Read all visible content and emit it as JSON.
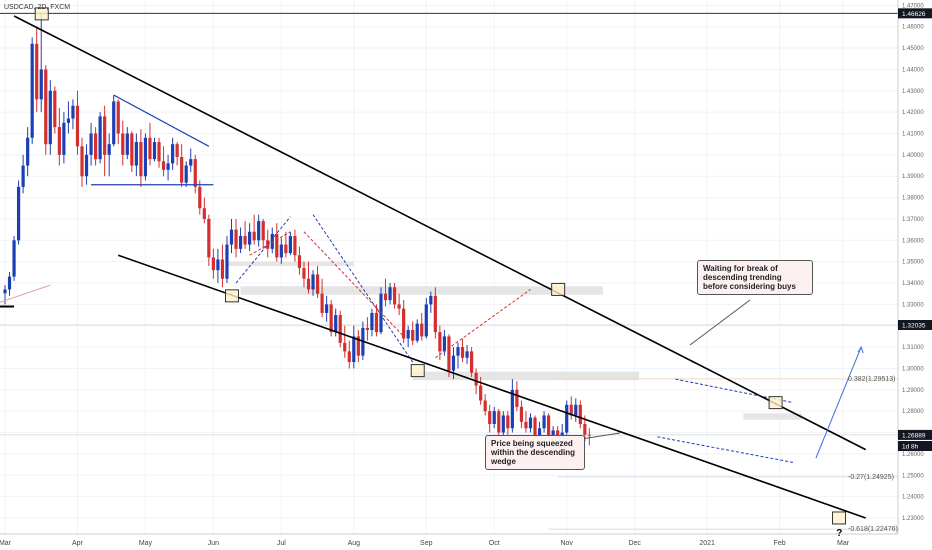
{
  "symbol_label": "USDCAD, 2D, FXCM",
  "chart_data": {
    "type": "candlestick",
    "title": "USDCAD, 2D, FXCM",
    "ylim": [
      1.2225,
      1.4725
    ],
    "y_ticks": [
      "1.47000",
      "1.46000",
      "1.45000",
      "1.44000",
      "1.43000",
      "1.42000",
      "1.41000",
      "1.40000",
      "1.39000",
      "1.38000",
      "1.37000",
      "1.36000",
      "1.35000",
      "1.34000",
      "1.33000",
      "1.32000",
      "1.31000",
      "1.30000",
      "1.29000",
      "1.28000",
      "1.27000",
      "1.26000",
      "1.25000",
      "1.24000",
      "1.23000"
    ],
    "x_ticks": [
      {
        "label": "Mar",
        "idx": 0
      },
      {
        "label": "Apr",
        "idx": 16
      },
      {
        "label": "May",
        "idx": 31
      },
      {
        "label": "Jun",
        "idx": 46
      },
      {
        "label": "Jul",
        "idx": 61
      },
      {
        "label": "Aug",
        "idx": 77
      },
      {
        "label": "Sep",
        "idx": 93
      },
      {
        "label": "Oct",
        "idx": 108
      },
      {
        "label": "Nov",
        "idx": 124
      },
      {
        "label": "Dec",
        "idx": 139
      },
      {
        "label": "2021",
        "idx": 155
      },
      {
        "label": "Feb",
        "idx": 171
      },
      {
        "label": "Mar",
        "idx": 185
      }
    ],
    "price_tags": [
      {
        "label": "1.46626",
        "value": 1.46626,
        "color": "#131722"
      },
      {
        "label": "1.32035",
        "value": 1.32035,
        "color": "#131722"
      },
      {
        "label": "1.26889",
        "value": 1.26889,
        "color": "#131722"
      },
      {
        "label": "1d 8h",
        "value": 1.2637,
        "color": "#131722"
      }
    ],
    "fib_labels": [
      {
        "label": "0.382(1.29513)",
        "value": 1.29513,
        "color": "#e0a060"
      },
      {
        "label": "-0.27(1.24925)",
        "value": 1.24925,
        "color": "#6a7bb0"
      },
      {
        "label": "-0.618(1.22476)",
        "value": 1.22476,
        "color": "#6a7bb0"
      }
    ],
    "ohlc": [
      [
        1.3352,
        1.339,
        1.33,
        1.337
      ],
      [
        1.337,
        1.3452,
        1.334,
        1.343
      ],
      [
        1.343,
        1.362,
        1.341,
        1.36
      ],
      [
        1.36,
        1.388,
        1.358,
        1.385
      ],
      [
        1.385,
        1.4,
        1.382,
        1.395
      ],
      [
        1.395,
        1.413,
        1.39,
        1.408
      ],
      [
        1.408,
        1.455,
        1.405,
        1.452
      ],
      [
        1.452,
        1.46,
        1.42,
        1.426
      ],
      [
        1.426,
        1.466,
        1.42,
        1.44
      ],
      [
        1.44,
        1.442,
        1.4,
        1.405
      ],
      [
        1.405,
        1.435,
        1.4,
        1.43
      ],
      [
        1.43,
        1.432,
        1.41,
        1.413
      ],
      [
        1.413,
        1.422,
        1.395,
        1.4
      ],
      [
        1.4,
        1.42,
        1.396,
        1.415
      ],
      [
        1.415,
        1.425,
        1.41,
        1.417
      ],
      [
        1.417,
        1.426,
        1.412,
        1.423
      ],
      [
        1.423,
        1.43,
        1.4,
        1.404
      ],
      [
        1.404,
        1.408,
        1.385,
        1.39
      ],
      [
        1.39,
        1.405,
        1.386,
        1.4
      ],
      [
        1.4,
        1.415,
        1.395,
        1.41
      ],
      [
        1.41,
        1.413,
        1.395,
        1.398
      ],
      [
        1.398,
        1.42,
        1.396,
        1.418
      ],
      [
        1.418,
        1.423,
        1.39,
        1.4
      ],
      [
        1.4,
        1.41,
        1.39,
        1.405
      ],
      [
        1.405,
        1.428,
        1.404,
        1.425
      ],
      [
        1.425,
        1.426,
        1.405,
        1.41
      ],
      [
        1.41,
        1.416,
        1.395,
        1.4
      ],
      [
        1.4,
        1.413,
        1.398,
        1.41
      ],
      [
        1.41,
        1.411,
        1.392,
        1.395
      ],
      [
        1.395,
        1.41,
        1.39,
        1.406
      ],
      [
        1.406,
        1.412,
        1.385,
        1.39
      ],
      [
        1.39,
        1.41,
        1.388,
        1.408
      ],
      [
        1.408,
        1.415,
        1.395,
        1.398
      ],
      [
        1.398,
        1.408,
        1.397,
        1.406
      ],
      [
        1.406,
        1.408,
        1.394,
        1.397
      ],
      [
        1.397,
        1.404,
        1.39,
        1.393
      ],
      [
        1.393,
        1.4,
        1.388,
        1.396
      ],
      [
        1.396,
        1.408,
        1.393,
        1.405
      ],
      [
        1.405,
        1.406,
        1.395,
        1.399
      ],
      [
        1.399,
        1.405,
        1.385,
        1.387
      ],
      [
        1.387,
        1.397,
        1.385,
        1.395
      ],
      [
        1.395,
        1.403,
        1.392,
        1.398
      ],
      [
        1.398,
        1.4,
        1.382,
        1.385
      ],
      [
        1.385,
        1.388,
        1.372,
        1.375
      ],
      [
        1.375,
        1.38,
        1.368,
        1.37
      ],
      [
        1.37,
        1.372,
        1.348,
        1.352
      ],
      [
        1.352,
        1.356,
        1.342,
        1.346
      ],
      [
        1.346,
        1.356,
        1.34,
        1.351
      ],
      [
        1.351,
        1.358,
        1.338,
        1.342
      ],
      [
        1.342,
        1.362,
        1.34,
        1.358
      ],
      [
        1.358,
        1.37,
        1.354,
        1.365
      ],
      [
        1.365,
        1.37,
        1.352,
        1.356
      ],
      [
        1.356,
        1.366,
        1.354,
        1.362
      ],
      [
        1.362,
        1.369,
        1.356,
        1.358
      ],
      [
        1.358,
        1.368,
        1.355,
        1.364
      ],
      [
        1.364,
        1.372,
        1.358,
        1.36
      ],
      [
        1.36,
        1.372,
        1.357,
        1.369
      ],
      [
        1.369,
        1.37,
        1.356,
        1.36
      ],
      [
        1.36,
        1.365,
        1.352,
        1.356
      ],
      [
        1.356,
        1.366,
        1.354,
        1.363
      ],
      [
        1.363,
        1.368,
        1.35,
        1.352
      ],
      [
        1.352,
        1.361,
        1.349,
        1.358
      ],
      [
        1.358,
        1.364,
        1.352,
        1.354
      ],
      [
        1.354,
        1.364,
        1.353,
        1.362
      ],
      [
        1.362,
        1.365,
        1.35,
        1.353
      ],
      [
        1.353,
        1.357,
        1.344,
        1.347
      ],
      [
        1.347,
        1.35,
        1.338,
        1.342
      ],
      [
        1.342,
        1.35,
        1.335,
        1.337
      ],
      [
        1.337,
        1.346,
        1.334,
        1.344
      ],
      [
        1.344,
        1.348,
        1.333,
        1.335
      ],
      [
        1.335,
        1.342,
        1.324,
        1.326
      ],
      [
        1.326,
        1.334,
        1.322,
        1.33
      ],
      [
        1.33,
        1.332,
        1.315,
        1.317
      ],
      [
        1.317,
        1.328,
        1.315,
        1.325
      ],
      [
        1.325,
        1.327,
        1.31,
        1.312
      ],
      [
        1.312,
        1.32,
        1.305,
        1.308
      ],
      [
        1.308,
        1.313,
        1.3,
        1.303
      ],
      [
        1.303,
        1.32,
        1.3,
        1.315
      ],
      [
        1.315,
        1.318,
        1.303,
        1.306
      ],
      [
        1.306,
        1.322,
        1.304,
        1.319
      ],
      [
        1.319,
        1.324,
        1.313,
        1.318
      ],
      [
        1.318,
        1.328,
        1.315,
        1.326
      ],
      [
        1.326,
        1.33,
        1.315,
        1.317
      ],
      [
        1.317,
        1.338,
        1.316,
        1.335
      ],
      [
        1.335,
        1.342,
        1.329,
        1.332
      ],
      [
        1.332,
        1.34,
        1.33,
        1.338
      ],
      [
        1.338,
        1.34,
        1.328,
        1.33
      ],
      [
        1.33,
        1.335,
        1.325,
        1.328
      ],
      [
        1.328,
        1.332,
        1.312,
        1.314
      ],
      [
        1.314,
        1.32,
        1.31,
        1.318
      ],
      [
        1.318,
        1.322,
        1.311,
        1.313
      ],
      [
        1.313,
        1.323,
        1.312,
        1.321
      ],
      [
        1.321,
        1.326,
        1.313,
        1.315
      ],
      [
        1.315,
        1.333,
        1.314,
        1.33
      ],
      [
        1.33,
        1.336,
        1.326,
        1.334
      ],
      [
        1.334,
        1.338,
        1.314,
        1.317
      ],
      [
        1.317,
        1.32,
        1.304,
        1.308
      ],
      [
        1.308,
        1.318,
        1.306,
        1.315
      ],
      [
        1.315,
        1.316,
        1.296,
        1.299
      ],
      [
        1.299,
        1.31,
        1.295,
        1.306
      ],
      [
        1.306,
        1.312,
        1.3,
        1.31
      ],
      [
        1.31,
        1.314,
        1.303,
        1.305
      ],
      [
        1.305,
        1.311,
        1.302,
        1.308
      ],
      [
        1.308,
        1.31,
        1.296,
        1.298
      ],
      [
        1.298,
        1.3,
        1.288,
        1.292
      ],
      [
        1.292,
        1.296,
        1.283,
        1.285
      ],
      [
        1.285,
        1.288,
        1.278,
        1.28
      ],
      [
        1.28,
        1.283,
        1.27,
        1.274
      ],
      [
        1.274,
        1.282,
        1.272,
        1.28
      ],
      [
        1.28,
        1.281,
        1.268,
        1.27
      ],
      [
        1.27,
        1.28,
        1.267,
        1.278
      ],
      [
        1.278,
        1.28,
        1.269,
        1.272
      ],
      [
        1.272,
        1.295,
        1.27,
        1.29
      ],
      [
        1.29,
        1.294,
        1.28,
        1.282
      ],
      [
        1.282,
        1.285,
        1.272,
        1.275
      ],
      [
        1.275,
        1.28,
        1.27,
        1.272
      ],
      [
        1.272,
        1.279,
        1.27,
        1.277
      ],
      [
        1.277,
        1.278,
        1.263,
        1.265
      ],
      [
        1.265,
        1.275,
        1.262,
        1.272
      ],
      [
        1.272,
        1.28,
        1.27,
        1.278
      ],
      [
        1.278,
        1.279,
        1.264,
        1.266
      ],
      [
        1.266,
        1.273,
        1.26,
        1.271
      ],
      [
        1.271,
        1.273,
        1.263,
        1.265
      ],
      [
        1.265,
        1.274,
        1.262,
        1.27
      ],
      [
        1.27,
        1.285,
        1.269,
        1.283
      ],
      [
        1.283,
        1.287,
        1.276,
        1.278
      ],
      [
        1.278,
        1.286,
        1.275,
        1.283
      ],
      [
        1.283,
        1.285,
        1.272,
        1.274
      ],
      [
        1.274,
        1.278,
        1.266,
        1.269
      ],
      [
        1.269,
        1.272,
        1.264,
        1.2689
      ]
    ],
    "trendlines": [
      {
        "name": "wedge-upper",
        "points": [
          [
            2,
            1.465
          ],
          [
            190,
            1.262
          ]
        ],
        "style": "solid"
      },
      {
        "name": "wedge-lower",
        "points": [
          [
            25,
            1.353
          ],
          [
            190,
            1.23
          ]
        ],
        "style": "solid"
      }
    ],
    "annotations": [
      {
        "text": "Waiting for break of descending trending before considering buys"
      },
      {
        "text": "Price being squeezed within the descending wedge"
      },
      {
        "text": "?"
      }
    ]
  },
  "colors": {
    "up": "#1d3fb5",
    "down": "#d32f2f",
    "grid": "#f0f3fa",
    "line": "#000000",
    "zone": "#e5e5e5",
    "zone_box": "#fff2cc",
    "note_bg": "#fdf0f0"
  }
}
